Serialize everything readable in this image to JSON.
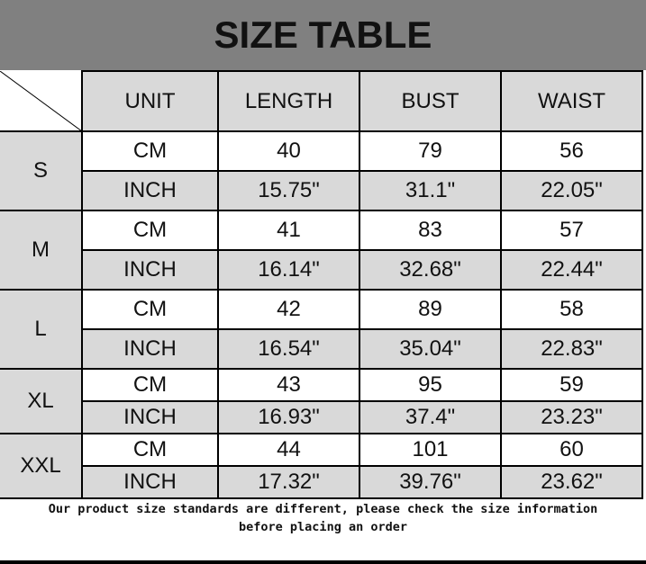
{
  "title": "SIZE TABLE",
  "headers": [
    "UNIT",
    "LENGTH",
    "BUST",
    "WAIST"
  ],
  "sizes": [
    {
      "size": "S",
      "rows": [
        [
          "CM",
          "40",
          "79",
          "56"
        ],
        [
          "INCH",
          "15.75\"",
          "31.1\"",
          "22.05\""
        ]
      ]
    },
    {
      "size": "M",
      "rows": [
        [
          "CM",
          "41",
          "83",
          "57"
        ],
        [
          "INCH",
          "16.14\"",
          "32.68\"",
          "22.44\""
        ]
      ]
    },
    {
      "size": "L",
      "rows": [
        [
          "CM",
          "42",
          "89",
          "58"
        ],
        [
          "INCH",
          "16.54\"",
          "35.04\"",
          "22.83\""
        ]
      ]
    },
    {
      "size": "XL",
      "rows": [
        [
          "CM",
          "43",
          "95",
          "59"
        ],
        [
          "INCH",
          "16.93\"",
          "37.4\"",
          "23.23\""
        ]
      ]
    },
    {
      "size": "XXL",
      "rows": [
        [
          "CM",
          "44",
          "101",
          "60"
        ],
        [
          "INCH",
          "17.32\"",
          "39.76\"",
          "23.62\""
        ]
      ]
    }
  ],
  "note_line1": "Our product size standards are different, please check the size information",
  "note_line2": "before placing an order",
  "colors": {
    "title_bg": "#808080",
    "cell_gray": "#d9d9d9"
  }
}
